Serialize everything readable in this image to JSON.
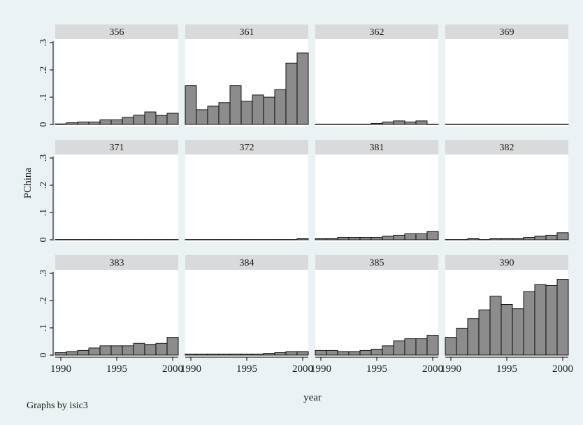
{
  "chart_data": {
    "type": "bar",
    "by_variable_note": "Graphs by isic3",
    "xlabel": "year",
    "ylabel": "PChina",
    "xlim": [
      1989.5,
      2000.5
    ],
    "ylim": [
      0,
      0.3
    ],
    "x_ticks": [
      "1990",
      "1995",
      "2000"
    ],
    "y_ticks": [
      "0",
      ".1",
      ".2",
      ".3"
    ],
    "grid": false,
    "colors": {
      "bar_fill": "#8c8c8c",
      "bar_stroke": "#000000",
      "panel_header": "#d9dadb",
      "background": "#eaf2f3",
      "plot_bg": "#ffffff"
    },
    "years": [
      1990,
      1991,
      1992,
      1993,
      1994,
      1995,
      1996,
      1997,
      1998,
      1999,
      2000
    ],
    "panels": [
      {
        "name": "356",
        "values": [
          0.002,
          0.006,
          0.009,
          0.009,
          0.017,
          0.017,
          0.026,
          0.034,
          0.046,
          0.033,
          0.041
        ]
      },
      {
        "name": "361",
        "values": [
          0.142,
          0.054,
          0.067,
          0.08,
          0.142,
          0.085,
          0.108,
          0.1,
          0.128,
          0.225,
          0.262
        ]
      },
      {
        "name": "362",
        "values": [
          0.001,
          0.001,
          0.001,
          0.001,
          0.001,
          0.004,
          0.009,
          0.013,
          0.009,
          0.013,
          0.001
        ]
      },
      {
        "name": "369",
        "values": [
          0.001,
          0.001,
          0.001,
          0.001,
          0.001,
          0.001,
          0.001,
          0.001,
          0.001,
          0.001,
          0.001
        ]
      },
      {
        "name": "371",
        "values": [
          0.001,
          0.001,
          0.001,
          0.001,
          0.001,
          0.001,
          0.001,
          0.001,
          0.001,
          0.001,
          0.001
        ]
      },
      {
        "name": "372",
        "values": [
          0.001,
          0.001,
          0.001,
          0.001,
          0.001,
          0.001,
          0.001,
          0.001,
          0.001,
          0.001,
          0.004
        ]
      },
      {
        "name": "381",
        "values": [
          0.004,
          0.004,
          0.009,
          0.009,
          0.009,
          0.009,
          0.013,
          0.017,
          0.022,
          0.022,
          0.03
        ]
      },
      {
        "name": "382",
        "values": [
          0.001,
          0.001,
          0.004,
          0.001,
          0.004,
          0.004,
          0.004,
          0.009,
          0.013,
          0.017,
          0.026
        ]
      },
      {
        "name": "383",
        "values": [
          0.009,
          0.013,
          0.017,
          0.026,
          0.034,
          0.034,
          0.034,
          0.043,
          0.039,
          0.043,
          0.065
        ]
      },
      {
        "name": "384",
        "values": [
          0.004,
          0.004,
          0.004,
          0.004,
          0.004,
          0.004,
          0.004,
          0.006,
          0.009,
          0.013,
          0.013
        ]
      },
      {
        "name": "385",
        "values": [
          0.017,
          0.017,
          0.013,
          0.013,
          0.017,
          0.022,
          0.034,
          0.052,
          0.06,
          0.06,
          0.073
        ]
      },
      {
        "name": "390",
        "values": [
          0.065,
          0.099,
          0.134,
          0.166,
          0.216,
          0.186,
          0.17,
          0.233,
          0.259,
          0.255,
          0.278
        ]
      }
    ]
  }
}
